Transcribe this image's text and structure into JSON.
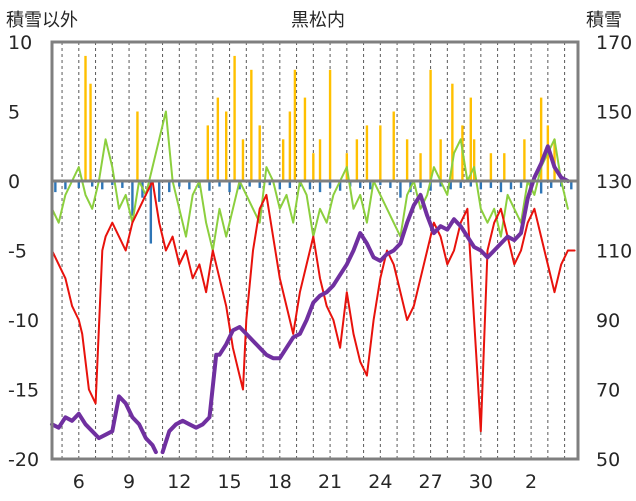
{
  "chart_data": {
    "type": "line",
    "title": "黒松内",
    "left_axis_label": "積雪以外",
    "right_axis_label": "積雪",
    "left_ylim": [
      -20,
      10
    ],
    "right_ylim": [
      50,
      170
    ],
    "left_ticks": [
      "10",
      "5",
      "0",
      "-5",
      "-10",
      "-15",
      "-20"
    ],
    "right_ticks": [
      "170",
      "150",
      "130",
      "110",
      "90",
      "70",
      "50"
    ],
    "x_ticks": [
      "6",
      "9",
      "12",
      "15",
      "18",
      "21",
      "24",
      "27",
      "30",
      "2"
    ],
    "x_tick_positions_day": [
      6,
      9,
      12,
      15,
      18,
      21,
      24,
      27,
      30,
      33
    ],
    "xlim_day": [
      4.4,
      35.8
    ],
    "grid": "vertical dashed daily lines",
    "colors": {
      "temperature_max": "#8ccf3e",
      "temperature_min": "#e8120c",
      "snow_depth": "#7030a0",
      "snowfall_bars": "#ffc000",
      "precip_bars": "#2e75b6",
      "frame": "#7f7f7f",
      "zero_line": "#7f7f7f"
    },
    "series": [
      {
        "key": "tmax",
        "axis": "left",
        "x": [
          4.4,
          4.8,
          5.2,
          5.6,
          6.0,
          6.4,
          6.8,
          7.2,
          7.6,
          8.0,
          8.4,
          8.8,
          9.2,
          9.6,
          10.0,
          10.4,
          10.8,
          11.2,
          11.6,
          12.0,
          12.4,
          12.8,
          13.2,
          13.6,
          14.0,
          14.4,
          14.8,
          15.2,
          15.6,
          16.0,
          16.4,
          16.8,
          17.2,
          17.6,
          18.0,
          18.4,
          18.8,
          19.2,
          19.6,
          20.0,
          20.4,
          20.8,
          21.2,
          21.6,
          22.0,
          22.4,
          22.8,
          23.2,
          23.6,
          24.0,
          24.4,
          24.8,
          25.2,
          25.6,
          26.0,
          26.4,
          26.8,
          27.2,
          27.6,
          28.0,
          28.4,
          28.8,
          29.2,
          29.6,
          30.0,
          30.4,
          30.8,
          31.2,
          31.6,
          32.0,
          32.4,
          32.8,
          33.2,
          33.6,
          34.0,
          34.4,
          34.8,
          35.2
        ],
        "values": [
          -2,
          -3,
          -1,
          0,
          1,
          -1,
          -2,
          0,
          3,
          1,
          -2,
          -1,
          -3,
          0,
          -1,
          1,
          3,
          5,
          0,
          -2,
          -4,
          -1,
          0,
          -3,
          -5,
          -2,
          -4,
          -2,
          0,
          -1,
          -2,
          -3,
          1,
          0,
          -2,
          -1,
          -3,
          0,
          -1,
          -4,
          -2,
          -3,
          -1,
          0,
          1,
          -2,
          -1,
          -3,
          0,
          -1,
          -2,
          -3,
          -4,
          -1,
          0,
          -2,
          -1,
          1,
          0,
          -1,
          2,
          3,
          0,
          1,
          -2,
          -3,
          -2,
          -4,
          -1,
          -2,
          -3,
          0,
          -1,
          1,
          2,
          3,
          0,
          -2
        ]
      },
      {
        "key": "tmin",
        "axis": "left",
        "x": [
          4.4,
          4.8,
          5.2,
          5.6,
          6.0,
          6.2,
          6.6,
          7.0,
          7.4,
          7.6,
          8.0,
          8.4,
          8.8,
          9.2,
          9.6,
          10.0,
          10.4,
          10.8,
          11.2,
          11.6,
          12.0,
          12.4,
          12.8,
          13.2,
          13.6,
          14.0,
          14.4,
          14.8,
          15.2,
          15.6,
          15.8,
          16.0,
          16.4,
          16.8,
          17.2,
          17.6,
          18.0,
          18.4,
          18.8,
          19.2,
          19.6,
          20.0,
          20.4,
          20.8,
          21.2,
          21.6,
          22.0,
          22.4,
          22.8,
          23.2,
          23.6,
          24.0,
          24.4,
          24.8,
          25.2,
          25.6,
          26.0,
          26.4,
          26.8,
          27.2,
          27.6,
          28.0,
          28.4,
          28.8,
          29.2,
          29.6,
          29.8,
          30.0,
          30.4,
          30.8,
          31.2,
          31.6,
          32.0,
          32.4,
          32.8,
          33.2,
          33.6,
          34.0,
          34.4,
          34.8,
          35.2,
          35.6
        ],
        "values": [
          -5,
          -6,
          -7,
          -9,
          -10,
          -11,
          -15,
          -16,
          -5,
          -4,
          -3,
          -4,
          -5,
          -3,
          -2,
          -1,
          0,
          -3,
          -5,
          -4,
          -6,
          -5,
          -7,
          -6,
          -8,
          -5,
          -7,
          -9,
          -12,
          -14,
          -15,
          -10,
          -5,
          -2,
          -1,
          -4,
          -7,
          -9,
          -11,
          -8,
          -6,
          -4,
          -7,
          -9,
          -10,
          -12,
          -8,
          -11,
          -13,
          -14,
          -10,
          -7,
          -5,
          -6,
          -8,
          -10,
          -9,
          -7,
          -5,
          -3,
          -4,
          -6,
          -5,
          -3,
          -2,
          -10,
          -14,
          -18,
          -5,
          -3,
          -2,
          -4,
          -6,
          -5,
          -3,
          -2,
          -4,
          -6,
          -8,
          -6,
          -5,
          -5
        ]
      },
      {
        "key": "snow_depth",
        "axis": "right",
        "x": [
          4.4,
          4.8,
          5.2,
          5.6,
          6.0,
          6.4,
          6.8,
          7.2,
          7.6,
          8.0,
          8.4,
          8.8,
          9.2,
          9.6,
          10.0,
          10.4,
          10.6
        ],
        "values": [
          60,
          59,
          62,
          61,
          63,
          60,
          58,
          56,
          57,
          58,
          68,
          66,
          62,
          60,
          56,
          54,
          52
        ]
      },
      {
        "key": "snow_depth_b",
        "axis": "right",
        "x": [
          11.0,
          11.4,
          11.8,
          12.2,
          12.6,
          13.0,
          13.4,
          13.8,
          14.2,
          14.4,
          14.8,
          15.2,
          15.6,
          16.0,
          16.4,
          16.8,
          17.2,
          17.6,
          18.0,
          18.4,
          18.8,
          19.2,
          19.6,
          20.0,
          20.4,
          20.8,
          21.2,
          21.6,
          22.0,
          22.4,
          22.8,
          23.2,
          23.6,
          24.0,
          24.4,
          24.8,
          25.2,
          25.6,
          26.0,
          26.4,
          26.8,
          27.2,
          27.6,
          28.0,
          28.4,
          28.8,
          29.2,
          29.6,
          30.0,
          30.4,
          30.8,
          31.2,
          31.6,
          32.0,
          32.4,
          32.8,
          33.2,
          33.6,
          34.0,
          34.4,
          34.8,
          35.2
        ],
        "values": [
          52,
          58,
          60,
          61,
          60,
          59,
          60,
          62,
          80,
          80,
          83,
          87,
          88,
          86,
          84,
          82,
          80,
          79,
          79,
          82,
          85,
          86,
          90,
          95,
          97,
          98,
          100,
          103,
          106,
          110,
          115,
          112,
          108,
          107,
          109,
          110,
          112,
          118,
          123,
          126,
          120,
          115,
          117,
          116,
          119,
          117,
          114,
          111,
          110,
          108,
          110,
          112,
          114,
          113,
          115,
          125,
          131,
          135,
          140,
          134,
          131,
          130
        ]
      }
    ],
    "bars": [
      {
        "key": "snowfall",
        "axis": "left",
        "x": [
          6.4,
          6.7,
          9.5,
          13.7,
          14.3,
          14.8,
          15.3,
          15.8,
          16.3,
          16.8,
          18.2,
          18.6,
          18.9,
          19.5,
          20.0,
          20.4,
          21.0,
          22.0,
          22.6,
          23.2,
          24.0,
          24.8,
          25.6,
          26.4,
          27.0,
          27.6,
          28.3,
          28.9,
          29.4,
          29.6,
          30.6,
          31.4,
          32.6,
          33.6,
          34.0,
          34.4
        ],
        "values": [
          9,
          7,
          5,
          4,
          6,
          5,
          9,
          3,
          8,
          4,
          3,
          5,
          8,
          6,
          2,
          3,
          8,
          2,
          3,
          4,
          4,
          5,
          3,
          2,
          8,
          3,
          7,
          4,
          6,
          3,
          2,
          2,
          3,
          6,
          4,
          3
        ]
      },
      {
        "key": "precip",
        "axis": "left",
        "x": [
          4.6,
          5.2,
          6.0,
          6.8,
          7.4,
          8.0,
          8.6,
          9.2,
          9.8,
          10.3,
          10.8,
          11.4,
          12.0,
          12.6,
          13.2,
          13.8,
          14.4,
          15.0,
          15.6,
          16.2,
          16.8,
          17.4,
          18.0,
          18.6,
          19.2,
          19.8,
          20.4,
          21.0,
          21.6,
          22.2,
          22.8,
          23.4,
          24.0,
          24.6,
          25.2,
          25.8,
          26.4,
          27.0,
          27.6,
          28.2,
          28.8,
          29.4,
          30.0,
          30.6,
          31.2,
          31.8,
          32.4,
          33.0,
          33.6,
          34.2,
          34.8,
          35.4
        ],
        "values": [
          -0.8,
          -0.6,
          -0.5,
          -0.4,
          -0.6,
          -0.3,
          -0.5,
          -2.5,
          -1.2,
          -4.5,
          -1.5,
          -0.8,
          -0.4,
          -0.6,
          -0.5,
          -0.7,
          -0.4,
          -0.8,
          -0.6,
          -0.4,
          -0.5,
          -0.3,
          -0.6,
          -0.5,
          -0.4,
          -0.6,
          -0.8,
          -0.5,
          -0.7,
          -0.4,
          -0.5,
          -0.6,
          -0.3,
          -0.5,
          -1.2,
          -0.8,
          -0.5,
          -0.7,
          -0.4,
          -0.6,
          -0.5,
          -0.4,
          -0.6,
          -0.5,
          -0.8,
          -0.6,
          -0.5,
          -0.7,
          -0.9,
          -0.5,
          -0.4,
          -0.6
        ]
      }
    ]
  }
}
